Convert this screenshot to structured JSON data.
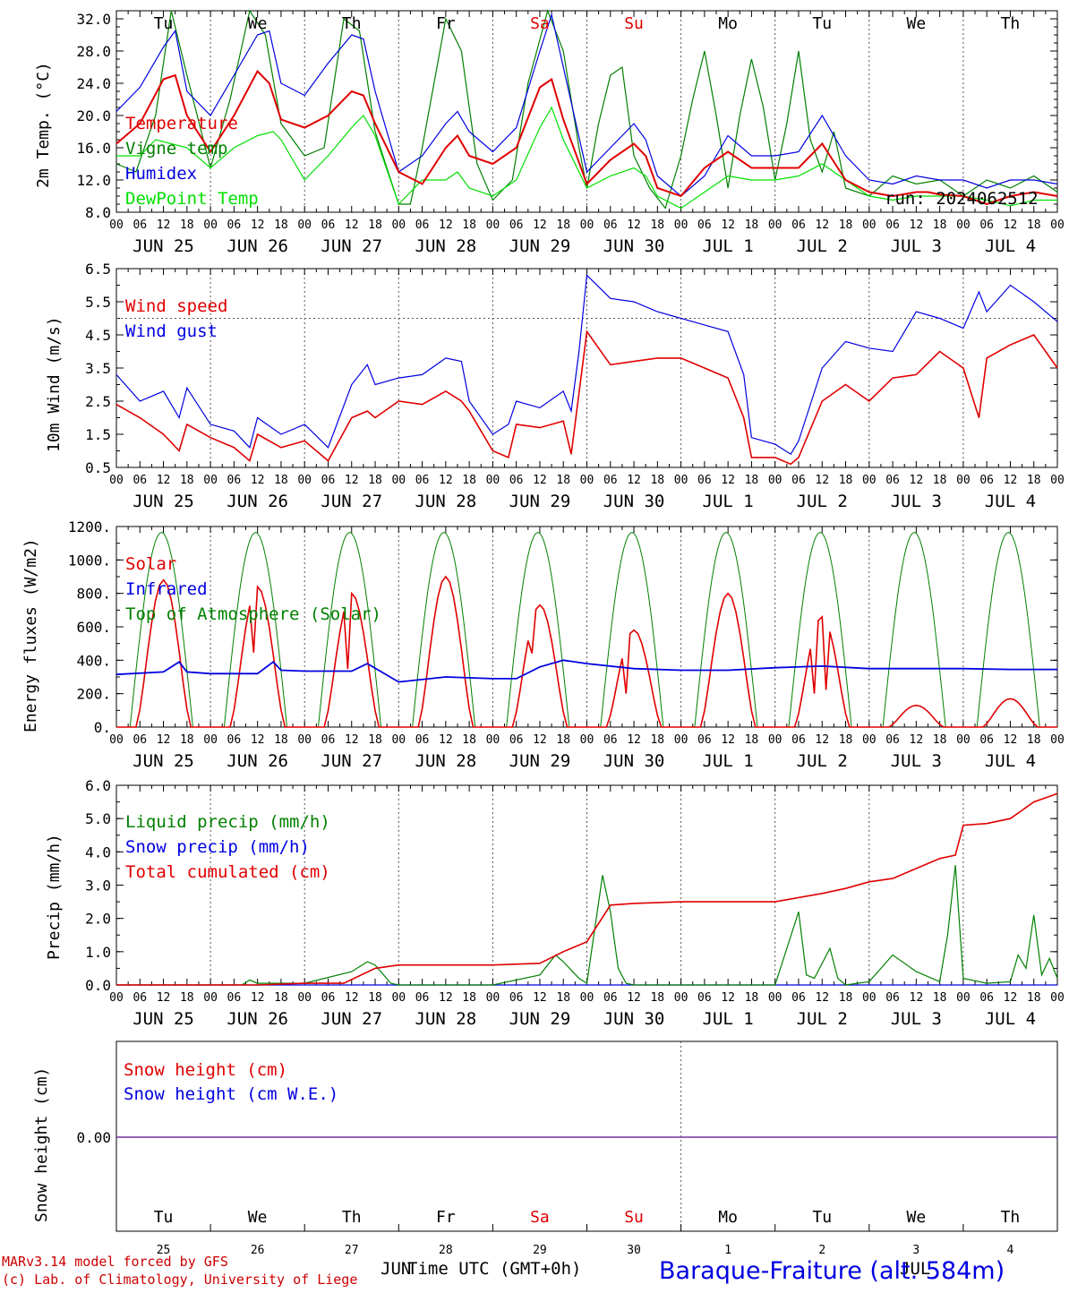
{
  "days": [
    "Tu",
    "We",
    "Th",
    "Fr",
    "Sa",
    "Su",
    "Mo",
    "Tu",
    "We",
    "Th"
  ],
  "day_colors": [
    "#000",
    "#000",
    "#000",
    "#000",
    "#e00000",
    "#e00000",
    "#000",
    "#000",
    "#000",
    "#000"
  ],
  "dates": [
    "JUN 25",
    "JUN 26",
    "JUN 27",
    "JUN 28",
    "JUN 29",
    "JUN 30",
    "JUL  1",
    "JUL  2",
    "JUL  3",
    "JUL  4"
  ],
  "hour_ticks": [
    "00",
    "06",
    "12",
    "18"
  ],
  "last_hour_tick": "00",
  "day_numbers": [
    "25",
    "26",
    "27",
    "28",
    "29",
    "30",
    "1",
    "2",
    "3",
    "4"
  ],
  "bottom_months": [
    "JUN",
    "JUL"
  ],
  "time_label": "Time UTC (GMT+0h)",
  "station": "Baraque-Fraiture (alt. 584m)",
  "credit_line1": "MARv3.14 model forced by GFS",
  "credit_line2": "(c) Lab. of Climatology, University of Liege",
  "run_label": "run: 2024062512",
  "colors": {
    "red": "#e00000",
    "green": "#008000",
    "blue": "#0000e0",
    "lightgreen": "#00e000",
    "purple": "#7030a0"
  },
  "chart_data": [
    {
      "type": "line",
      "ylabel": "2m Temp. (°C)",
      "ylim": [
        8,
        33
      ],
      "yticks": [
        "8.0",
        "12.0",
        "16.0",
        "20.0",
        "24.0",
        "28.0",
        "32.0"
      ],
      "x_unit": "hours from JUN 25 00 UTC",
      "series": [
        {
          "name": "Temperature",
          "color": "#e00000",
          "x": [
            0,
            6,
            12,
            15,
            18,
            24,
            30,
            36,
            39,
            42,
            48,
            54,
            60,
            63,
            66,
            72,
            78,
            84,
            87,
            90,
            96,
            102,
            108,
            111,
            114,
            120,
            126,
            132,
            135,
            138,
            144,
            150,
            156,
            162,
            168,
            174,
            180,
            186,
            192,
            198,
            204,
            207,
            210,
            216,
            222,
            228,
            234,
            240
          ],
          "y": [
            16.5,
            19,
            24.5,
            25,
            20,
            15.5,
            20,
            25.5,
            24,
            19.5,
            18.5,
            20,
            23,
            22.5,
            19,
            13,
            11.5,
            16,
            17.5,
            15,
            14,
            16,
            23.5,
            24.5,
            19.5,
            11.5,
            14.5,
            16.5,
            15,
            11,
            10,
            13.5,
            15.5,
            13.5,
            13.5,
            13.5,
            16.5,
            12,
            10.5,
            10,
            10.5,
            10.5,
            10.2,
            10,
            9,
            10,
            10.5,
            10
          ]
        },
        {
          "name": "Vigne temp",
          "color": "#008000",
          "x": [
            0,
            5,
            10,
            14,
            18,
            24,
            29,
            34,
            38,
            42,
            48,
            53,
            58,
            62,
            66,
            72,
            75,
            78,
            84,
            88,
            92,
            96,
            101,
            105,
            110,
            114,
            118,
            120,
            123,
            126,
            129,
            132,
            136,
            140,
            144,
            147,
            150,
            153,
            156,
            159,
            162,
            165,
            168,
            171,
            174,
            177,
            180,
            183,
            186,
            192,
            198,
            204,
            210,
            216,
            222,
            228,
            234,
            240
          ],
          "y": [
            14,
            13,
            20,
            33,
            25,
            13.5,
            22,
            33,
            30,
            19,
            15,
            16,
            32,
            30.5,
            18,
            9,
            9,
            16,
            32,
            28,
            14,
            9.5,
            12,
            24,
            33,
            28,
            16,
            11,
            19,
            25,
            26,
            15,
            11,
            8.5,
            15,
            22,
            28,
            20,
            11,
            20,
            27,
            21,
            12,
            19,
            28,
            17,
            13,
            18,
            11,
            10,
            12.5,
            11.5,
            12,
            10,
            12,
            11,
            12.5,
            10.5
          ]
        },
        {
          "name": "Humidex",
          "color": "#0000e0",
          "x": [
            0,
            6,
            12,
            15,
            18,
            24,
            30,
            36,
            39,
            42,
            48,
            54,
            60,
            63,
            66,
            72,
            78,
            84,
            87,
            90,
            96,
            102,
            108,
            111,
            114,
            120,
            126,
            132,
            135,
            138,
            144,
            150,
            156,
            162,
            168,
            174,
            180,
            186,
            192,
            198,
            204,
            210,
            216,
            222,
            228,
            234,
            240
          ],
          "y": [
            20.5,
            23.5,
            28.5,
            30.5,
            23,
            20,
            25,
            30,
            30.5,
            24,
            22.5,
            26.5,
            30,
            29.5,
            23,
            13,
            15,
            19,
            20.5,
            18,
            15.5,
            18.5,
            28,
            32.5,
            26,
            13,
            16,
            19,
            17,
            12.5,
            10,
            12.5,
            17.5,
            15,
            15,
            15.5,
            20,
            15,
            12,
            11.5,
            12.5,
            12,
            12,
            11,
            12,
            12,
            11.5
          ]
        },
        {
          "name": "DewPoint Temp",
          "color": "#00e000",
          "x": [
            0,
            6,
            10,
            14,
            18,
            24,
            30,
            36,
            40,
            42,
            48,
            54,
            60,
            63,
            66,
            72,
            78,
            84,
            87,
            90,
            96,
            102,
            108,
            111,
            114,
            120,
            126,
            132,
            135,
            138,
            144,
            150,
            156,
            162,
            168,
            174,
            180,
            186,
            192,
            198,
            204,
            210,
            216,
            222,
            228,
            234,
            240
          ],
          "y": [
            15,
            15,
            17,
            16.5,
            16,
            13.5,
            16,
            17.5,
            18,
            17,
            12,
            15,
            18.5,
            20,
            17.5,
            9,
            12,
            12,
            13,
            11,
            10,
            12,
            18.5,
            21,
            17,
            11,
            12.5,
            13.5,
            12.5,
            10,
            8.5,
            10.5,
            12.5,
            12,
            12,
            12.5,
            14,
            12,
            10,
            9.5,
            10,
            10,
            10,
            9.5,
            8.8,
            9.5,
            9.5
          ]
        }
      ]
    },
    {
      "type": "line",
      "ylabel": "10m Wind (m/s)",
      "ylim": [
        0.5,
        6.5
      ],
      "yticks": [
        "0.5",
        "1.5",
        "2.5",
        "3.5",
        "4.5",
        "5.5",
        "6.5"
      ],
      "series": [
        {
          "name": "Wind speed",
          "color": "#e00000",
          "x": [
            0,
            6,
            12,
            16,
            18,
            24,
            30,
            34,
            36,
            42,
            48,
            54,
            60,
            64,
            66,
            72,
            78,
            84,
            88,
            90,
            96,
            100,
            102,
            108,
            114,
            116,
            120,
            126,
            132,
            138,
            144,
            150,
            156,
            160,
            162,
            168,
            172,
            174,
            180,
            186,
            192,
            198,
            204,
            210,
            216,
            220,
            222,
            228,
            234,
            240
          ],
          "y": [
            2.4,
            2,
            1.5,
            1,
            1.8,
            1.4,
            1.1,
            0.7,
            1.5,
            1.1,
            1.3,
            0.7,
            2,
            2.2,
            2,
            2.5,
            2.4,
            2.8,
            2.5,
            2.2,
            1,
            0.8,
            1.8,
            1.7,
            1.9,
            0.9,
            4.6,
            3.6,
            3.7,
            3.8,
            3.8,
            3.5,
            3.2,
            2,
            0.8,
            0.8,
            0.6,
            0.8,
            2.5,
            3,
            2.5,
            3.2,
            3.3,
            4,
            3.5,
            2,
            3.8,
            4.2,
            4.5,
            3.5
          ]
        },
        {
          "name": "Wind gust",
          "color": "#0000e0",
          "x": [
            0,
            6,
            12,
            16,
            18,
            24,
            30,
            34,
            36,
            42,
            48,
            54,
            60,
            64,
            66,
            72,
            78,
            84,
            88,
            90,
            96,
            100,
            102,
            108,
            114,
            116,
            118,
            120,
            126,
            132,
            138,
            144,
            150,
            156,
            160,
            162,
            168,
            172,
            174,
            180,
            186,
            192,
            198,
            204,
            210,
            216,
            220,
            222,
            228,
            234,
            240
          ],
          "y": [
            3.3,
            2.5,
            2.8,
            2,
            2.9,
            1.8,
            1.6,
            1.1,
            2,
            1.5,
            1.8,
            1.1,
            3,
            3.6,
            3,
            3.2,
            3.3,
            3.8,
            3.7,
            2.5,
            1.5,
            1.8,
            2.5,
            2.3,
            2.8,
            2.2,
            4,
            6.3,
            5.6,
            5.5,
            5.2,
            5,
            4.8,
            4.6,
            3.3,
            1.4,
            1.2,
            0.9,
            1.3,
            3.5,
            4.3,
            4.1,
            4,
            5.2,
            5,
            4.7,
            5.8,
            5.2,
            6,
            5.5,
            4.9
          ]
        }
      ]
    },
    {
      "type": "line",
      "ylabel": "Energy fluxes (W/m2)",
      "ylim": [
        0,
        1200
      ],
      "yticks": [
        "0.",
        "200.",
        "400.",
        "600.",
        "800.",
        "1000.",
        "1200."
      ],
      "series": [
        {
          "name": "Solar",
          "color": "#e00000",
          "days_peak": [
            880,
            840,
            800,
            900,
            730,
            580,
            800,
            660,
            130,
            170
          ]
        },
        {
          "name": "Infrared",
          "color": "#0000e0",
          "x": [
            0,
            12,
            16,
            18,
            24,
            36,
            40,
            42,
            48,
            60,
            64,
            72,
            84,
            96,
            102,
            108,
            114,
            120,
            132,
            144,
            156,
            168,
            180,
            192,
            204,
            216,
            228,
            240
          ],
          "y": [
            315,
            330,
            390,
            330,
            320,
            320,
            390,
            340,
            335,
            335,
            380,
            270,
            300,
            290,
            290,
            360,
            400,
            380,
            350,
            340,
            340,
            355,
            365,
            350,
            350,
            350,
            345,
            345
          ]
        },
        {
          "name": "Top of Atmosphere (Solar)",
          "color": "#008000",
          "peak": 1165
        }
      ]
    },
    {
      "type": "line",
      "ylabel": "Precip (mm/h)",
      "ylim": [
        0,
        6
      ],
      "yticks": [
        "0.0",
        "1.0",
        "2.0",
        "3.0",
        "4.0",
        "5.0",
        "6.0"
      ],
      "series": [
        {
          "name": "Liquid precip (mm/h)",
          "color": "#008000",
          "x": [
            0,
            32,
            34,
            36,
            48,
            60,
            64,
            66,
            70,
            72,
            96,
            108,
            112,
            114,
            118,
            120,
            124,
            126,
            128,
            130,
            132,
            168,
            174,
            176,
            178,
            182,
            184,
            186,
            192,
            198,
            204,
            210,
            212,
            214,
            216,
            222,
            228,
            230,
            232,
            234,
            236,
            238,
            240
          ],
          "y": [
            0,
            0,
            0.15,
            0.05,
            0.05,
            0.4,
            0.7,
            0.6,
            0.05,
            0,
            0,
            0.3,
            0.9,
            0.7,
            0.2,
            0.05,
            3.3,
            2.2,
            0.5,
            0.05,
            0,
            0,
            2.2,
            0.3,
            0.2,
            1.1,
            0.2,
            0,
            0.1,
            0.9,
            0.4,
            0.1,
            1.5,
            3.6,
            0.2,
            0.05,
            0.1,
            0.9,
            0.5,
            2.1,
            0.3,
            0.8,
            0.2
          ]
        },
        {
          "name": "Snow precip (mm/h)",
          "color": "#0000e0",
          "x": [
            0,
            240
          ],
          "y": [
            0,
            0
          ]
        },
        {
          "name": "Total cumulated (cm)",
          "color": "#e00000",
          "x": [
            0,
            36,
            48,
            58,
            66,
            72,
            96,
            108,
            114,
            120,
            126,
            132,
            144,
            168,
            180,
            186,
            192,
            198,
            204,
            210,
            214,
            216,
            222,
            228,
            234,
            240
          ],
          "y": [
            0,
            0,
            0.05,
            0.05,
            0.5,
            0.6,
            0.6,
            0.65,
            1.0,
            1.3,
            2.4,
            2.45,
            2.5,
            2.5,
            2.75,
            2.9,
            3.1,
            3.2,
            3.5,
            3.8,
            3.9,
            4.8,
            4.85,
            5.0,
            5.5,
            5.75
          ]
        }
      ]
    },
    {
      "type": "line",
      "ylabel": "Snow height (cm)",
      "ytick": "0.00",
      "series": [
        {
          "name": "Snow height (cm)",
          "color": "#e00000",
          "x": [
            0,
            240
          ],
          "y": [
            0,
            0
          ]
        },
        {
          "name": "Snow height (cm W.E.)",
          "color": "#0000e0",
          "x": [
            0,
            240
          ],
          "y": [
            0,
            0
          ]
        }
      ]
    }
  ]
}
